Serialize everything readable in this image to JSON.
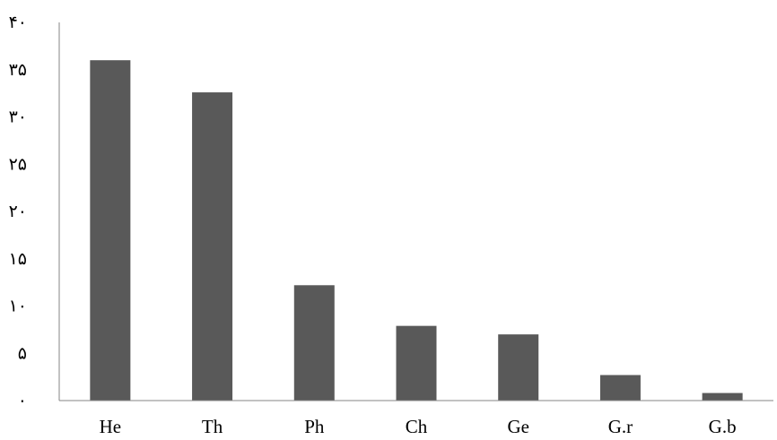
{
  "chart_data": {
    "type": "bar",
    "categories": [
      "He",
      "Th",
      "Ph",
      "Ch",
      "Ge",
      "G.r",
      "G.b"
    ],
    "values": [
      36,
      32.6,
      12.2,
      7.9,
      7,
      2.7,
      0.8
    ],
    "ylim": [
      0,
      40
    ],
    "yticks": [
      0,
      5,
      10,
      15,
      20,
      25,
      30,
      35,
      40
    ],
    "ytick_labels": [
      "۰",
      "۵",
      "۱۰",
      "۱۵",
      "۲۰",
      "۲۵",
      "۳۰",
      "۳۵",
      "۴۰"
    ],
    "grid": false,
    "legend": "none",
    "bar_color": "#595959",
    "axis_color": "#868686",
    "title": "",
    "xlabel": "",
    "ylabel": ""
  }
}
